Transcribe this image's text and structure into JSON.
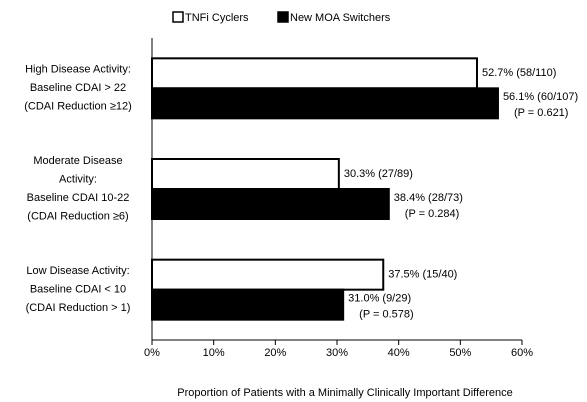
{
  "chart_data": {
    "type": "bar",
    "orientation": "horizontal",
    "categories": [
      [
        "High Disease Activity:",
        "Baseline CDAI > 22",
        "(CDAI Reduction ≥12)"
      ],
      [
        "Moderate Disease",
        "Activity:",
        "Baseline CDAI 10-22",
        "(CDAI Reduction ≥6)"
      ],
      [
        "Low Disease Activity:",
        "Baseline CDAI < 10",
        "(CDAI Reduction > 1)"
      ]
    ],
    "series": [
      {
        "name": "TNFi Cyclers",
        "color": "#ffffff",
        "values": [
          52.7,
          30.3,
          37.5
        ],
        "value_labels": [
          "52.7% (58/110)",
          "30.3% (27/89)",
          "37.5% (15/40)"
        ]
      },
      {
        "name": "New MOA Switchers",
        "color": "#000000",
        "values": [
          56.1,
          38.4,
          31.0
        ],
        "value_labels": [
          "56.1% (60/107)",
          "38.4% (28/73)",
          "31.0% (9/29)"
        ]
      }
    ],
    "p_labels": [
      "(P = 0.621)",
      "(P = 0.284)",
      "(P = 0.578)"
    ],
    "xlim": [
      0,
      60
    ],
    "xticks": [
      {
        "value": 0,
        "label": "0%"
      },
      {
        "value": 10,
        "label": "10%"
      },
      {
        "value": 20,
        "label": "20%"
      },
      {
        "value": 30,
        "label": "30%"
      },
      {
        "value": 40,
        "label": "40%"
      },
      {
        "value": 50,
        "label": "50%"
      },
      {
        "value": 60,
        "label": "60%"
      }
    ],
    "x_label": "Proportion of Patients with a Minimally Clinically Important Difference",
    "legend": "top",
    "grid": false
  }
}
